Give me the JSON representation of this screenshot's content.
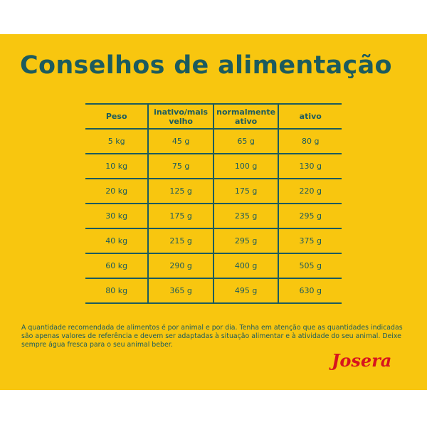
{
  "header": {
    "title": "Conselhos de alimentação"
  },
  "table": {
    "columns": [
      "Peso",
      "inativo/mais velho",
      "normalmente ativo",
      "ativo"
    ],
    "rows": [
      [
        "5 kg",
        "45 g",
        "65 g",
        "80 g"
      ],
      [
        "10 kg",
        "75 g",
        "100 g",
        "130 g"
      ],
      [
        "20 kg",
        "125 g",
        "175 g",
        "220 g"
      ],
      [
        "30 kg",
        "175 g",
        "235 g",
        "295 g"
      ],
      [
        "40 kg",
        "215 g",
        "295 g",
        "375 g"
      ],
      [
        "60 kg",
        "290 g",
        "400 g",
        "505 g"
      ],
      [
        "80 kg",
        "365 g",
        "495 g",
        "630 g"
      ]
    ]
  },
  "footnote": "A quantidade recomendada de alimentos é por animal e por dia. Tenha em atenção que as quantidades indicadas são apenas valores de referência e devem ser adaptadas à situação alimentar e à atividade do seu animal. Deixe sempre água fresca para o seu animal beber.",
  "logo": "Josera"
}
